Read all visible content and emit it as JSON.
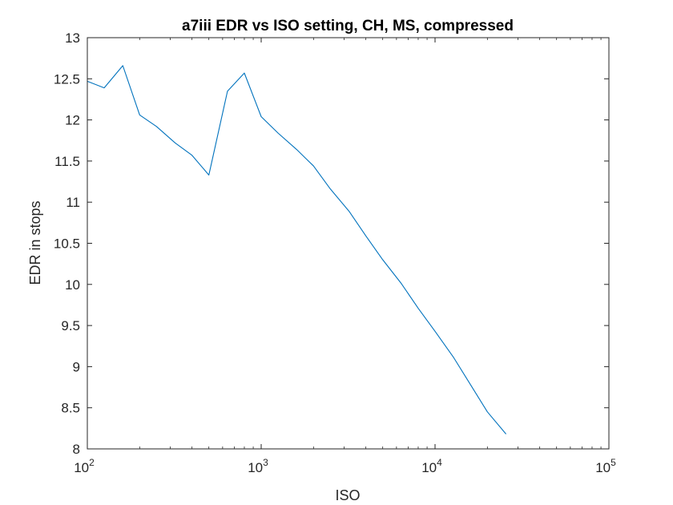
{
  "chart_data": {
    "type": "line",
    "title": "a7iii EDR vs ISO setting, CH, MS, compressed",
    "xlabel": "ISO",
    "ylabel": "EDR in stops",
    "xscale": "log",
    "xlim": [
      100,
      100000
    ],
    "ylim": [
      8,
      13
    ],
    "grid": false,
    "legend": "none",
    "x_ticks": [
      {
        "value": 100,
        "base": "10",
        "exp": "2"
      },
      {
        "value": 1000,
        "base": "10",
        "exp": "3"
      },
      {
        "value": 10000,
        "base": "10",
        "exp": "4"
      },
      {
        "value": 100000,
        "base": "10",
        "exp": "5"
      }
    ],
    "y_ticks": [
      {
        "value": 8,
        "label": "8"
      },
      {
        "value": 8.5,
        "label": "8.5"
      },
      {
        "value": 9,
        "label": "9"
      },
      {
        "value": 9.5,
        "label": "9.5"
      },
      {
        "value": 10,
        "label": "10"
      },
      {
        "value": 10.5,
        "label": "10.5"
      },
      {
        "value": 11,
        "label": "11"
      },
      {
        "value": 11.5,
        "label": "11.5"
      },
      {
        "value": 12,
        "label": "12"
      },
      {
        "value": 12.5,
        "label": "12.5"
      },
      {
        "value": 13,
        "label": "13"
      }
    ],
    "series": [
      {
        "color": "#0072BD",
        "x": [
          100,
          125,
          160,
          200,
          250,
          320,
          400,
          500,
          640,
          800,
          1000,
          1250,
          1600,
          2000,
          2500,
          3200,
          4000,
          5000,
          6400,
          8000,
          10000,
          12800,
          16000,
          20000,
          25600
        ],
        "y": [
          12.47,
          12.39,
          12.66,
          12.06,
          11.92,
          11.72,
          11.57,
          11.33,
          12.35,
          12.57,
          12.04,
          11.84,
          11.64,
          11.44,
          11.16,
          10.89,
          10.59,
          10.3,
          10.01,
          9.71,
          9.43,
          9.11,
          8.78,
          8.45,
          8.18
        ]
      }
    ]
  }
}
